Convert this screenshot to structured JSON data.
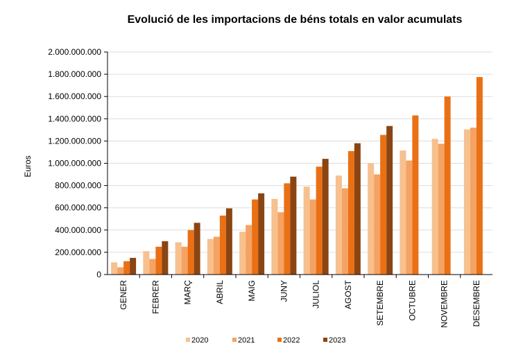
{
  "chart_data": {
    "type": "bar",
    "title": "Evolució de les importacions de béns totals en valor acumulats",
    "ylabel": "Euros",
    "xlabel": "",
    "ylim": [
      0,
      2000000000
    ],
    "ytick_step": 200000000,
    "yticks": [
      "0",
      "200.000.000",
      "400.000.000",
      "600.000.000",
      "800.000.000",
      "1.000.000.000",
      "1.200.000.000",
      "1.400.000.000",
      "1.600.000.000",
      "1.800.000.000",
      "2.000.000.000"
    ],
    "grid": true,
    "legend_position": "bottom",
    "categories": [
      "GENER",
      "FEBRER",
      "MARÇ",
      "ABRIL",
      "MAIG",
      "JUNY",
      "JULIOL",
      "AGOST",
      "SETEMBRE",
      "OCTUBRE",
      "NOVEMBRE",
      "DESEMBRE"
    ],
    "series": [
      {
        "name": "2020",
        "color": "#f7c08f",
        "values": [
          110000000,
          210000000,
          290000000,
          320000000,
          385000000,
          680000000,
          790000000,
          890000000,
          1000000000,
          1115000000,
          1220000000,
          1305000000
        ]
      },
      {
        "name": "2021",
        "color": "#f5a262",
        "values": [
          65000000,
          140000000,
          250000000,
          340000000,
          445000000,
          560000000,
          675000000,
          775000000,
          900000000,
          1025000000,
          1175000000,
          1320000000
        ]
      },
      {
        "name": "2022",
        "color": "#ea7015",
        "values": [
          120000000,
          250000000,
          400000000,
          530000000,
          675000000,
          820000000,
          970000000,
          1110000000,
          1255000000,
          1430000000,
          1600000000,
          1775000000
        ]
      },
      {
        "name": "2023",
        "color": "#8b4513",
        "values": [
          150000000,
          300000000,
          465000000,
          595000000,
          730000000,
          880000000,
          1040000000,
          1180000000,
          1335000000,
          null,
          null,
          null
        ]
      }
    ]
  }
}
